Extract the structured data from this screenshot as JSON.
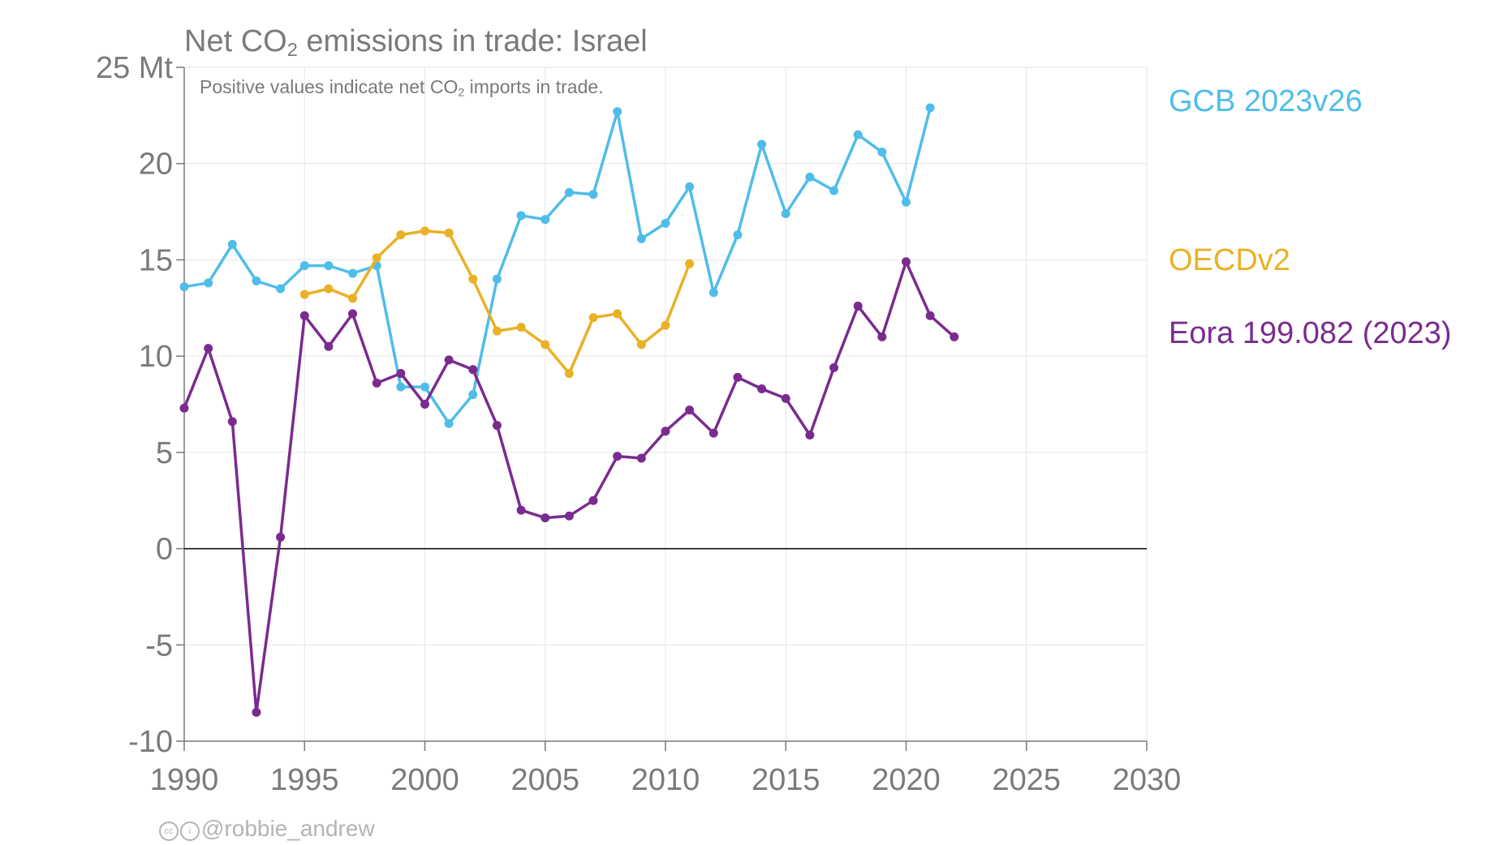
{
  "title": {
    "before": "Net CO",
    "sub": "2",
    "after": " emissions in trade: Israel"
  },
  "subtitle": {
    "before": "Positive values indicate net CO",
    "sub": "2",
    "after": " imports in trade."
  },
  "credit": {
    "icon1": "cc",
    "icon2": "i",
    "text": "@robbie_andrew"
  },
  "colors": {
    "gcb": "#4fbde9",
    "oecd": "#e9b125",
    "eora": "#7a2b8f",
    "axis": "#7a7a7a",
    "grid": "#e6e6e6",
    "zero": "#000000"
  },
  "chart_data": {
    "type": "line",
    "title": "Net CO2 emissions in trade: Israel",
    "subtitle": "Positive values indicate net CO2 imports in trade.",
    "xlim": [
      1990,
      2030
    ],
    "ylim": [
      -10,
      25
    ],
    "x_ticks": [
      "1990",
      "1995",
      "2000",
      "2005",
      "2010",
      "2015",
      "2020",
      "2025",
      "2030"
    ],
    "y_ticks": [
      "-10",
      "-5",
      "0",
      "5",
      "10",
      "15",
      "20",
      "25 Mt"
    ],
    "grid": true,
    "legend_placement": "right",
    "series": [
      {
        "name": "GCB 2023v26",
        "color": "#4fbde9",
        "x": [
          1990,
          1991,
          1992,
          1993,
          1994,
          1995,
          1996,
          1997,
          1998,
          1999,
          2000,
          2001,
          2002,
          2003,
          2004,
          2005,
          2006,
          2007,
          2008,
          2009,
          2010,
          2011,
          2012,
          2013,
          2014,
          2015,
          2016,
          2017,
          2018,
          2019,
          2020,
          2021
        ],
        "y": [
          13.6,
          13.8,
          15.8,
          13.9,
          13.5,
          14.7,
          14.7,
          14.3,
          14.7,
          8.4,
          8.4,
          6.5,
          8.0,
          14.0,
          17.3,
          17.1,
          18.5,
          18.4,
          22.7,
          16.1,
          16.9,
          18.8,
          13.3,
          16.3,
          21.0,
          17.4,
          19.3,
          18.6,
          21.5,
          20.6,
          18.0,
          22.9
        ]
      },
      {
        "name": "OECDv2",
        "color": "#e9b125",
        "x": [
          1995,
          1996,
          1997,
          1998,
          1999,
          2000,
          2001,
          2002,
          2003,
          2004,
          2005,
          2006,
          2007,
          2008,
          2009,
          2010,
          2011
        ],
        "y": [
          13.2,
          13.5,
          13.0,
          15.1,
          16.3,
          16.5,
          16.4,
          14.0,
          11.3,
          11.5,
          10.6,
          9.1,
          12.0,
          12.2,
          10.6,
          11.6,
          14.8
        ]
      },
      {
        "name": "Eora 199.082 (2023)",
        "color": "#7a2b8f",
        "x": [
          1990,
          1991,
          1992,
          1993,
          1994,
          1995,
          1996,
          1997,
          1998,
          1999,
          2000,
          2001,
          2002,
          2003,
          2004,
          2005,
          2006,
          2007,
          2008,
          2009,
          2010,
          2011,
          2012,
          2013,
          2014,
          2015,
          2016,
          2017,
          2018,
          2019,
          2020,
          2021,
          2022
        ],
        "y": [
          7.3,
          10.4,
          6.6,
          -8.5,
          0.6,
          12.1,
          10.5,
          12.2,
          8.6,
          9.1,
          7.5,
          9.8,
          9.3,
          6.4,
          2.0,
          1.6,
          1.7,
          2.5,
          4.8,
          4.7,
          6.1,
          7.2,
          6.0,
          8.9,
          8.3,
          7.8,
          5.9,
          9.4,
          12.6,
          11.0,
          14.9,
          12.1,
          11.0
        ]
      }
    ]
  }
}
